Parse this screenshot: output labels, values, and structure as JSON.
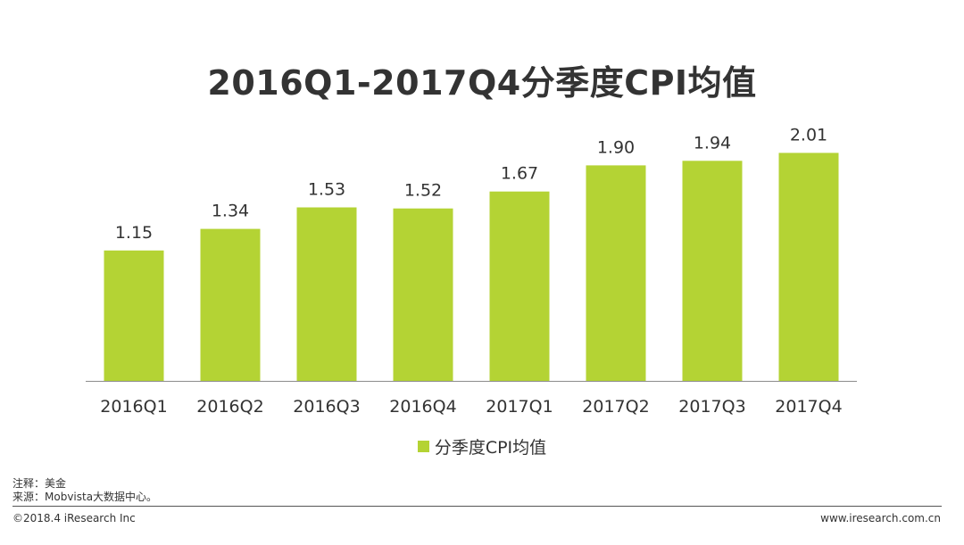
{
  "title": "2016Q1-2017Q4分季度CPI均值",
  "colors": {
    "bar": "#b4d334",
    "axis": "#8c8c8c",
    "text": "#333333"
  },
  "legend": {
    "label": "分季度CPI均值"
  },
  "notes": {
    "note": "注释：美金",
    "source": "来源：Mobvista大数据中心。"
  },
  "footer": {
    "copyright": "©2018.4 iResearch Inc",
    "website": "www.iresearch.com.cn"
  },
  "chart_data": {
    "type": "bar",
    "title": "2016Q1-2017Q4分季度CPI均值",
    "categories": [
      "2016Q1",
      "2016Q2",
      "2016Q3",
      "2016Q4",
      "2017Q1",
      "2017Q2",
      "2017Q3",
      "2017Q4"
    ],
    "series": [
      {
        "name": "分季度CPI均值",
        "values": [
          1.15,
          1.34,
          1.53,
          1.52,
          1.67,
          1.9,
          1.94,
          2.01
        ]
      }
    ],
    "data_labels": [
      "1.15",
      "1.34",
      "1.53",
      "1.52",
      "1.67",
      "1.90",
      "1.94",
      "2.01"
    ],
    "ylim": [
      0,
      2.1
    ],
    "grid": false,
    "legend_position": "bottom"
  }
}
